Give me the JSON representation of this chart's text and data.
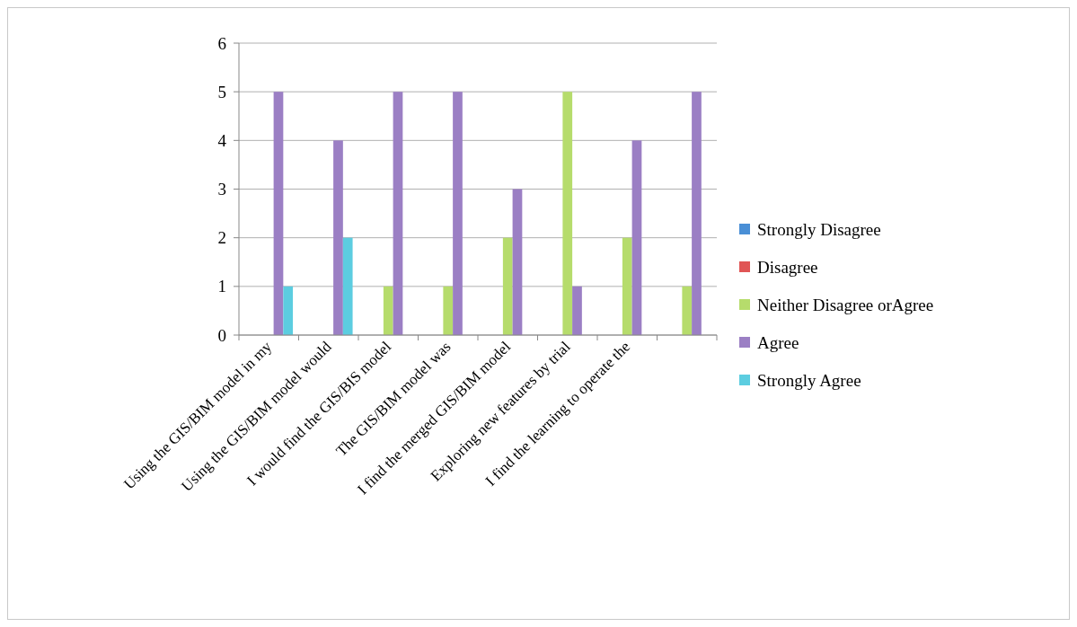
{
  "chart_data": {
    "type": "bar",
    "categories": [
      "Using the GIS/BIM model in my",
      "Using the GIS/BIM model would",
      "I would find the GIS/BIS model",
      "The GIS/BIM model was",
      "I find the merged GIS/BIM model",
      "Exploring new features by trial",
      "I find the learning to operate the",
      null
    ],
    "series": [
      {
        "name": "Strongly Disagree",
        "color": "#4a8fd6",
        "values": [
          0,
          0,
          0,
          0,
          0,
          0,
          0,
          0
        ]
      },
      {
        "name": "Disagree",
        "color": "#e05555",
        "values": [
          0,
          0,
          0,
          0,
          0,
          0,
          0,
          0
        ]
      },
      {
        "name": "Neither Disagree orAgree",
        "color": "#b6dc6c",
        "values": [
          0,
          0,
          1,
          1,
          2,
          5,
          2,
          1
        ]
      },
      {
        "name": "Agree",
        "color": "#9b7fc4",
        "values": [
          5,
          4,
          5,
          5,
          3,
          1,
          4,
          5
        ]
      },
      {
        "name": "Strongly Agree",
        "color": "#5ccde0",
        "values": [
          1,
          2,
          0,
          0,
          0,
          0,
          0,
          0
        ]
      }
    ],
    "ylim": [
      0,
      6
    ],
    "yticks": [
      0,
      1,
      2,
      3,
      4,
      5,
      6
    ],
    "grid": "y",
    "legend": "right"
  }
}
